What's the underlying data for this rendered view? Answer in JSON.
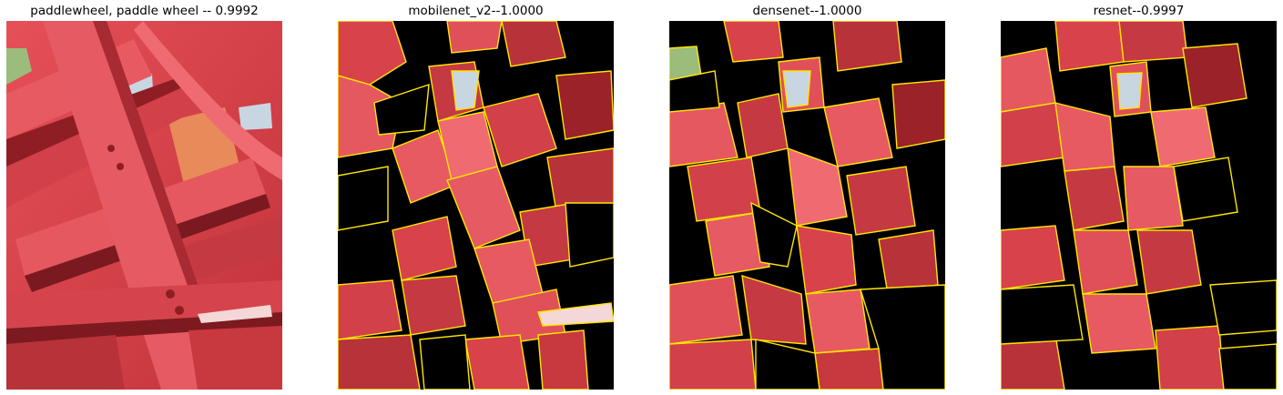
{
  "panels": [
    {
      "title": "paddlewheel, paddle wheel -- 0.9992",
      "kind": "original"
    },
    {
      "title": "mobilenet_v2--1.0000",
      "kind": "explanation-mask"
    },
    {
      "title": "densenet--1.0000",
      "kind": "explanation-mask"
    },
    {
      "title": "resnet--0.9997",
      "kind": "explanation-mask"
    }
  ],
  "colors": {
    "paint_red": "#d8424a",
    "paint_light": "#f0606a",
    "paint_dark": "#8e1e24",
    "shadow": "#6e1418",
    "sky": "#c8d6e2",
    "foliage": "#9cbc7c",
    "orange": "#e88a5a",
    "mask_black": "#000000",
    "boundary_yellow": "#ffe600"
  }
}
